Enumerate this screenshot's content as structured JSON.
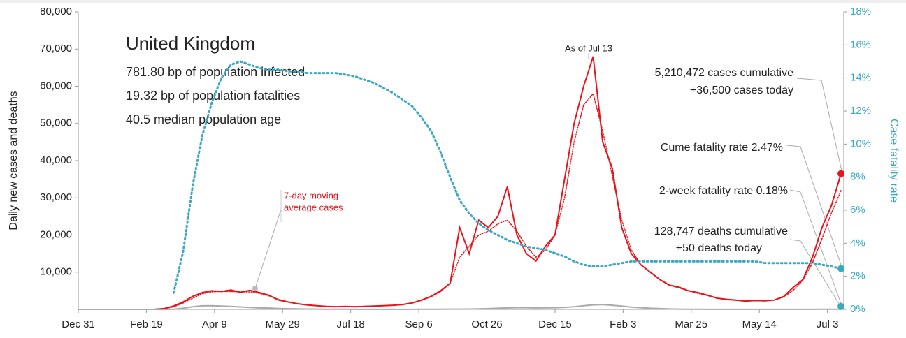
{
  "chart_data": {
    "type": "line",
    "title": "United Kingdom",
    "stats": [
      "781.80 bp of population infected",
      "19.32 bp of population fatalities",
      "40.5 median population age"
    ],
    "as_of": "As of Jul 13",
    "avg_label": [
      "7-day moving",
      "average cases"
    ],
    "right_notes": [
      "5,210,472 cases cumulative",
      "+36,500 cases today",
      "Cume fatality rate 2.47%",
      "2-week fatality rate 0.18%",
      "128,747 deaths cumulative",
      "+50 deaths today"
    ],
    "two_week_rate": 0.18,
    "y_label": "Daily new cases and deaths",
    "y2_label": "Case fatality rate",
    "xlim": [
      0,
      562
    ],
    "xticks": [
      {
        "value": 0,
        "label": "Dec 31"
      },
      {
        "value": 50,
        "label": "Feb 19"
      },
      {
        "value": 100,
        "label": "Apr 9"
      },
      {
        "value": 150,
        "label": "May 29"
      },
      {
        "value": 200,
        "label": "Jul 18"
      },
      {
        "value": 250,
        "label": "Sep 6"
      },
      {
        "value": 300,
        "label": "Oct 26"
      },
      {
        "value": 350,
        "label": "Dec 15"
      },
      {
        "value": 400,
        "label": "Feb 3"
      },
      {
        "value": 450,
        "label": "Mar 25"
      },
      {
        "value": 500,
        "label": "May 14"
      },
      {
        "value": 550,
        "label": "Jul 3"
      }
    ],
    "ylim": [
      0,
      80000
    ],
    "yticks": [
      {
        "value": 10000,
        "label": "10,000"
      },
      {
        "value": 20000,
        "label": "20,000"
      },
      {
        "value": 30000,
        "label": "30,000"
      },
      {
        "value": 40000,
        "label": "40,000"
      },
      {
        "value": 50000,
        "label": "50,000"
      },
      {
        "value": 60000,
        "label": "60,000"
      },
      {
        "value": 70000,
        "label": "70,000"
      },
      {
        "value": 80000,
        "label": "80,000"
      }
    ],
    "y2lim": [
      0,
      18
    ],
    "y2ticks": [
      {
        "value": 0,
        "label": "0%"
      },
      {
        "value": 2,
        "label": "2%"
      },
      {
        "value": 4,
        "label": "4%"
      },
      {
        "value": 6,
        "label": "6%"
      },
      {
        "value": 8,
        "label": "8%"
      },
      {
        "value": 10,
        "label": "10%"
      },
      {
        "value": 12,
        "label": "12%"
      },
      {
        "value": 14,
        "label": "14%"
      },
      {
        "value": 16,
        "label": "16%"
      },
      {
        "value": 18,
        "label": "18%"
      }
    ],
    "x": [
      0,
      7,
      14,
      21,
      28,
      35,
      42,
      49,
      56,
      63,
      70,
      77,
      84,
      91,
      98,
      105,
      112,
      119,
      126,
      133,
      140,
      147,
      154,
      161,
      168,
      175,
      182,
      189,
      196,
      203,
      210,
      217,
      224,
      231,
      238,
      245,
      252,
      259,
      266,
      273,
      280,
      287,
      294,
      301,
      308,
      315,
      322,
      329,
      336,
      343,
      350,
      357,
      364,
      371,
      378,
      385,
      392,
      399,
      406,
      413,
      420,
      427,
      434,
      441,
      448,
      455,
      462,
      469,
      476,
      483,
      490,
      497,
      504,
      511,
      518,
      525,
      532,
      539,
      546,
      553,
      560
    ],
    "series": [
      {
        "name": "Daily cases",
        "color": "#e8141b",
        "style": "solid",
        "values": [
          0,
          0,
          0,
          0,
          0,
          0,
          0,
          0,
          20,
          200,
          900,
          2000,
          3500,
          4500,
          5000,
          4800,
          5200,
          4600,
          5100,
          4500,
          3800,
          2500,
          2000,
          1500,
          1200,
          1000,
          800,
          700,
          800,
          700,
          800,
          900,
          1000,
          1100,
          1300,
          1700,
          2500,
          3500,
          5000,
          7000,
          22000,
          15000,
          24000,
          22000,
          25000,
          33000,
          20000,
          15000,
          13000,
          17000,
          20000,
          35000,
          50000,
          60000,
          68000,
          45000,
          38000,
          22000,
          15000,
          12000,
          10000,
          8000,
          6500,
          6000,
          5000,
          4500,
          3800,
          3000,
          2700,
          2500,
          2200,
          2400,
          2300,
          2500,
          3500,
          6000,
          8000,
          14000,
          22000,
          28000,
          36500
        ]
      },
      {
        "name": "7-day average",
        "color": "#e8141b",
        "style": "dotted",
        "values": [
          0,
          0,
          0,
          0,
          0,
          0,
          0,
          0,
          10,
          150,
          700,
          1700,
          3000,
          4200,
          4700,
          4800,
          4800,
          4700,
          4700,
          4300,
          3600,
          2700,
          2000,
          1500,
          1200,
          1000,
          850,
          750,
          750,
          750,
          800,
          880,
          980,
          1100,
          1300,
          1700,
          2400,
          3400,
          4800,
          7000,
          14000,
          17000,
          20000,
          21000,
          23000,
          24000,
          21000,
          17000,
          14000,
          16000,
          20000,
          30000,
          45000,
          55000,
          58000,
          48000,
          36000,
          24000,
          16000,
          12000,
          10000,
          8000,
          6500,
          5800,
          5000,
          4300,
          3700,
          3000,
          2600,
          2400,
          2300,
          2300,
          2300,
          2500,
          3300,
          5200,
          7800,
          12500,
          19000,
          26000,
          32000
        ]
      },
      {
        "name": "Deaths",
        "color": "#aaaaaa",
        "style": "solid",
        "values": [
          0,
          0,
          0,
          0,
          0,
          0,
          0,
          0,
          0,
          0,
          50,
          300,
          700,
          950,
          1000,
          900,
          800,
          650,
          500,
          400,
          350,
          250,
          180,
          130,
          100,
          80,
          60,
          40,
          30,
          20,
          20,
          15,
          15,
          15,
          20,
          25,
          30,
          40,
          50,
          70,
          70,
          100,
          150,
          200,
          300,
          400,
          450,
          450,
          400,
          420,
          450,
          550,
          700,
          1000,
          1200,
          1300,
          1100,
          900,
          600,
          450,
          300,
          200,
          120,
          80,
          50,
          30,
          25,
          20,
          15,
          10,
          10,
          10,
          10,
          10,
          15,
          15,
          20,
          25,
          30,
          40,
          50
        ]
      },
      {
        "name": "Case fatality rate",
        "color": "#3aa9c0",
        "style": "dotted",
        "axis": "y2",
        "values": [
          null,
          null,
          null,
          null,
          null,
          null,
          null,
          null,
          null,
          null,
          1.0,
          3.5,
          7.5,
          10.5,
          12.5,
          14.0,
          14.8,
          15.0,
          14.8,
          14.6,
          14.5,
          14.5,
          14.4,
          14.4,
          14.3,
          14.3,
          14.3,
          14.3,
          14.2,
          14.1,
          13.9,
          13.7,
          13.4,
          13.1,
          12.7,
          12.3,
          11.6,
          10.8,
          9.5,
          8.0,
          6.6,
          5.8,
          5.2,
          4.8,
          4.5,
          4.2,
          4.0,
          3.8,
          3.7,
          3.6,
          3.4,
          3.2,
          2.9,
          2.7,
          2.6,
          2.6,
          2.7,
          2.8,
          2.9,
          2.9,
          2.9,
          2.9,
          2.9,
          2.9,
          2.9,
          2.9,
          2.9,
          2.9,
          2.9,
          2.9,
          2.9,
          2.9,
          2.8,
          2.8,
          2.8,
          2.8,
          2.8,
          2.8,
          2.7,
          2.6,
          2.47
        ]
      }
    ]
  }
}
